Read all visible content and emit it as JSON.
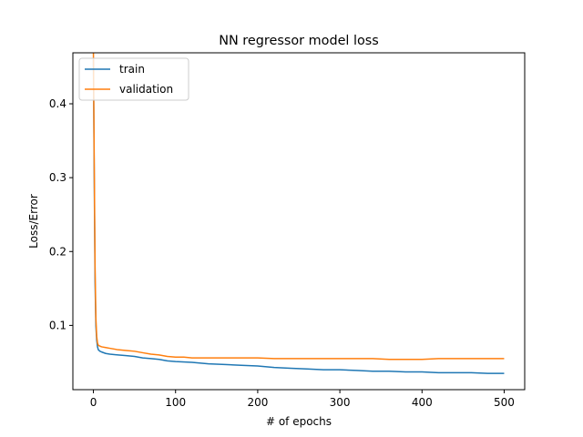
{
  "chart_data": {
    "type": "line",
    "title": "NN regressor model loss",
    "xlabel": "# of epochs",
    "ylabel": "Loss/Error",
    "xlim": [
      -25,
      525
    ],
    "ylim": [
      0.013,
      0.469
    ],
    "xticks": [
      0,
      100,
      200,
      300,
      400,
      500
    ],
    "yticks": [
      0.1,
      0.2,
      0.3,
      0.4
    ],
    "xtick_labels": [
      "0",
      "100",
      "200",
      "300",
      "400",
      "500"
    ],
    "ytick_labels": [
      "0.1",
      "0.2",
      "0.3",
      "0.4"
    ],
    "legend": {
      "placement": "top-left"
    },
    "series": [
      {
        "name": "train",
        "color": "#1f77b4",
        "x": [
          0,
          1,
          2,
          3,
          4,
          5,
          6,
          8,
          10,
          15,
          20,
          30,
          40,
          50,
          60,
          70,
          80,
          90,
          100,
          120,
          140,
          160,
          180,
          200,
          220,
          240,
          260,
          280,
          300,
          320,
          340,
          360,
          380,
          400,
          420,
          440,
          460,
          480,
          500
        ],
        "values": [
          0.46,
          0.3,
          0.16,
          0.1,
          0.08,
          0.071,
          0.067,
          0.065,
          0.064,
          0.062,
          0.061,
          0.06,
          0.059,
          0.058,
          0.056,
          0.055,
          0.054,
          0.052,
          0.051,
          0.05,
          0.048,
          0.047,
          0.046,
          0.045,
          0.043,
          0.042,
          0.041,
          0.04,
          0.04,
          0.039,
          0.038,
          0.038,
          0.037,
          0.037,
          0.036,
          0.036,
          0.036,
          0.035,
          0.035
        ]
      },
      {
        "name": "validation",
        "color": "#ff7f0e",
        "x": [
          0,
          1,
          2,
          3,
          4,
          5,
          6,
          8,
          10,
          15,
          20,
          30,
          40,
          50,
          60,
          70,
          80,
          90,
          100,
          110,
          120,
          140,
          160,
          180,
          200,
          220,
          240,
          260,
          280,
          300,
          320,
          340,
          360,
          380,
          400,
          420,
          440,
          460,
          480,
          500
        ],
        "values": [
          0.47,
          0.32,
          0.18,
          0.11,
          0.085,
          0.076,
          0.073,
          0.072,
          0.071,
          0.07,
          0.069,
          0.067,
          0.066,
          0.065,
          0.063,
          0.061,
          0.06,
          0.058,
          0.057,
          0.057,
          0.056,
          0.056,
          0.056,
          0.056,
          0.056,
          0.055,
          0.055,
          0.055,
          0.055,
          0.055,
          0.055,
          0.055,
          0.054,
          0.054,
          0.054,
          0.055,
          0.055,
          0.055,
          0.055,
          0.055
        ]
      }
    ]
  }
}
